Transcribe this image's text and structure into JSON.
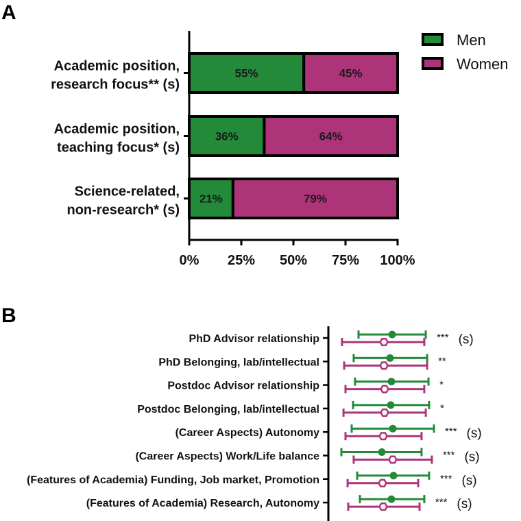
{
  "chart_data": [
    {
      "panel": "A",
      "type": "bar",
      "orientation": "horizontal",
      "stacked": true,
      "categories": [
        [
          "Academic position,",
          "research focus** (s)"
        ],
        [
          "Academic position,",
          "teaching focus* (s)"
        ],
        [
          "Science-related,",
          "non-research* (s)"
        ]
      ],
      "series": [
        {
          "name": "Men",
          "color": "#238a3a",
          "values": [
            55,
            36,
            21
          ],
          "labels": [
            "55%",
            "36%",
            "21%"
          ]
        },
        {
          "name": "Women",
          "color": "#ad3479",
          "values": [
            45,
            64,
            79
          ],
          "labels": [
            "45%",
            "64%",
            "79%"
          ]
        }
      ],
      "xlim": [
        0,
        100
      ],
      "xticks": [
        0,
        25,
        50,
        75,
        100
      ],
      "xtick_labels": [
        "0%",
        "25%",
        "50%",
        "75%",
        "100%"
      ],
      "xlabel": "",
      "ylabel": "",
      "grid": false,
      "legend": {
        "placement": "top-right",
        "entries": [
          "Men",
          "Women"
        ]
      }
    },
    {
      "panel": "B",
      "type": "scatter",
      "subtype": "point-with-error-bars",
      "note": "No numeric x-axis is shown; values are on a relative scale read from positions.",
      "xlim": [
        0,
        10
      ],
      "categories": [
        "PhD Advisor relationship",
        "PhD Belonging, lab/intellectual",
        "Postdoc Advisor relationship",
        "Postdoc Belonging, lab/intellectual",
        "(Career Aspects) Autonomy",
        "(Career Aspects) Work/Life balance",
        "(Features of Academia) Funding, Job market, Promotion",
        "(Features of Academia) Research, Autonomy"
      ],
      "significance": [
        {
          "stars": "***",
          "s": "(s)"
        },
        {
          "stars": "**",
          "s": ""
        },
        {
          "stars": "*",
          "s": ""
        },
        {
          "stars": "*",
          "s": ""
        },
        {
          "stars": "***",
          "s": "(s)"
        },
        {
          "stars": "***",
          "s": "(s)"
        },
        {
          "stars": "***",
          "s": "(s)"
        },
        {
          "stars": "***",
          "s": "(s)"
        }
      ],
      "series": [
        {
          "name": "Men",
          "color": "#238a3a",
          "marker": "filled-circle",
          "points": [
            {
              "low": 2.43,
              "mid": 5.14,
              "high": 7.85
            },
            {
              "low": 2.04,
              "mid": 4.97,
              "high": 7.96
            },
            {
              "low": 2.15,
              "mid": 5.08,
              "high": 8.07
            },
            {
              "low": 1.99,
              "mid": 5.03,
              "high": 8.12
            },
            {
              "low": 1.88,
              "mid": 5.19,
              "high": 8.51
            },
            {
              "low": 1.05,
              "mid": 4.31,
              "high": 7.51
            },
            {
              "low": 2.32,
              "mid": 5.25,
              "high": 8.12
            },
            {
              "low": 2.54,
              "mid": 5.08,
              "high": 7.73
            }
          ]
        },
        {
          "name": "Women",
          "color": "#ad3479",
          "marker": "open-hexagon",
          "points": [
            {
              "low": 1.1,
              "mid": 4.48,
              "high": 7.73
            },
            {
              "low": 1.27,
              "mid": 4.48,
              "high": 7.96
            },
            {
              "low": 1.38,
              "mid": 4.53,
              "high": 7.73
            },
            {
              "low": 1.22,
              "mid": 4.53,
              "high": 7.85
            },
            {
              "low": 1.38,
              "mid": 4.42,
              "high": 7.51
            },
            {
              "low": 2.04,
              "mid": 5.19,
              "high": 8.34
            },
            {
              "low": 1.55,
              "mid": 4.36,
              "high": 7.24
            },
            {
              "low": 1.6,
              "mid": 4.42,
              "high": 7.35
            }
          ]
        }
      ]
    }
  ],
  "panels": {
    "a_letter": "A",
    "b_letter": "B"
  }
}
